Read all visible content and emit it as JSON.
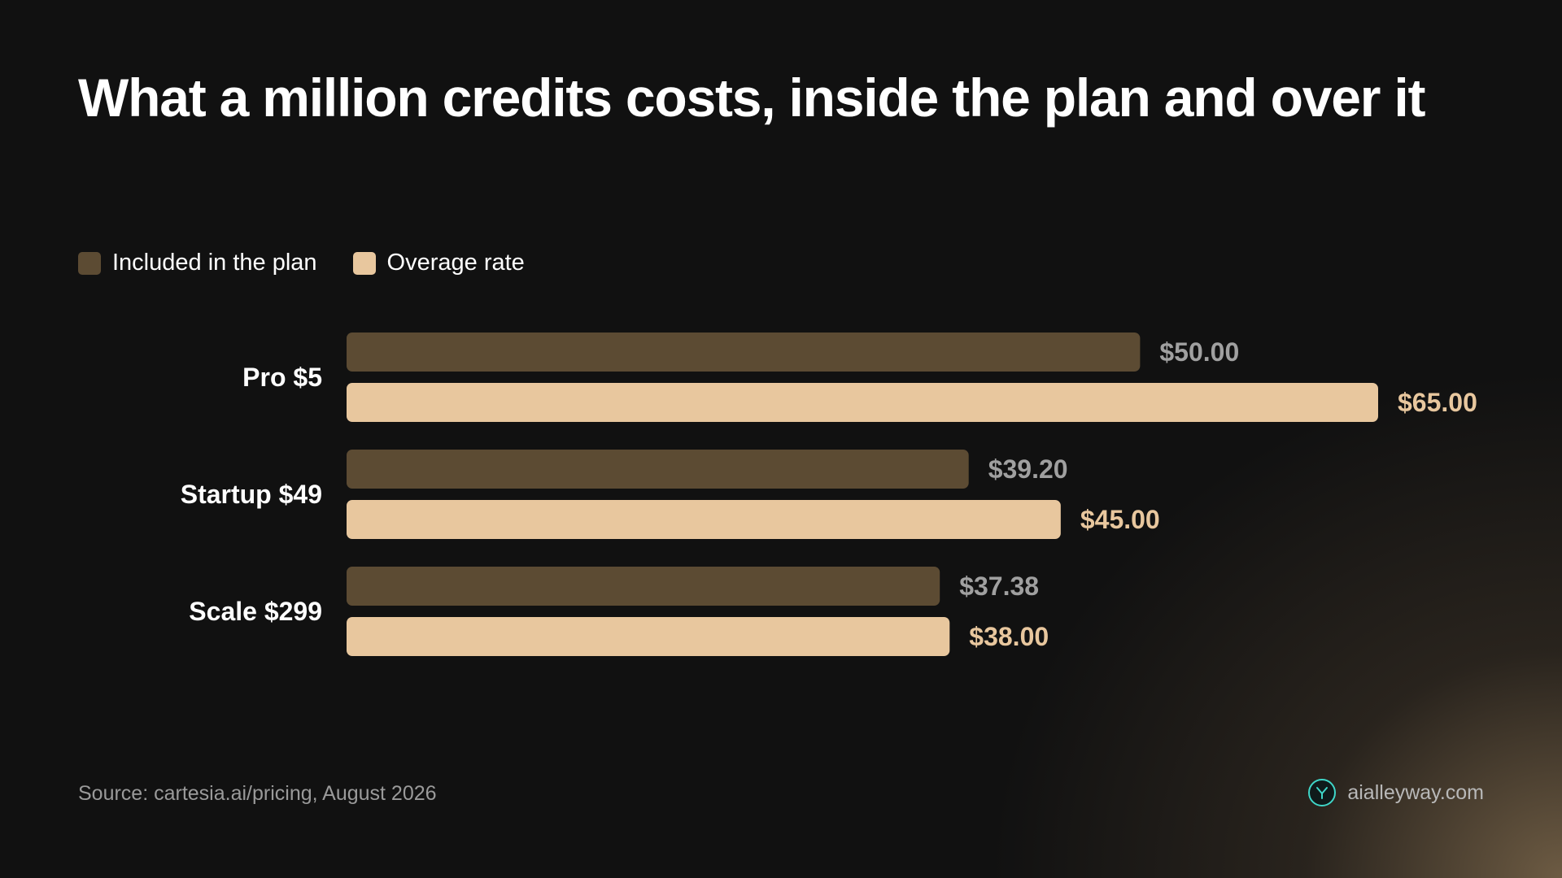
{
  "title": "What a million credits costs, inside the plan and over it",
  "legend": {
    "included": {
      "label": "Included in the plan",
      "color": "#5c4b33"
    },
    "overage": {
      "label": "Overage rate",
      "color": "#e8c79e"
    }
  },
  "chart_data": {
    "type": "bar",
    "orientation": "horizontal",
    "categories": [
      "Pro $5",
      "Startup $49",
      "Scale $299"
    ],
    "series": [
      {
        "name": "Included in the plan",
        "values": [
          50.0,
          39.2,
          37.38
        ],
        "labels": [
          "$50.00",
          "$39.20",
          "$37.38"
        ],
        "color": "#5c4b33",
        "label_color": "#a0a0a0"
      },
      {
        "name": "Overage rate",
        "values": [
          65.0,
          45.0,
          38.0
        ],
        "labels": [
          "$65.00",
          "$45.00",
          "$38.00"
        ],
        "color": "#e8c79e",
        "label_color": "#e8c79e"
      }
    ],
    "xlim": [
      0,
      65
    ],
    "grid": false,
    "legend_position": "top-left"
  },
  "footer": {
    "source": "Source: cartesia.ai/pricing, August 2026",
    "brand": "aialleyway.com"
  }
}
